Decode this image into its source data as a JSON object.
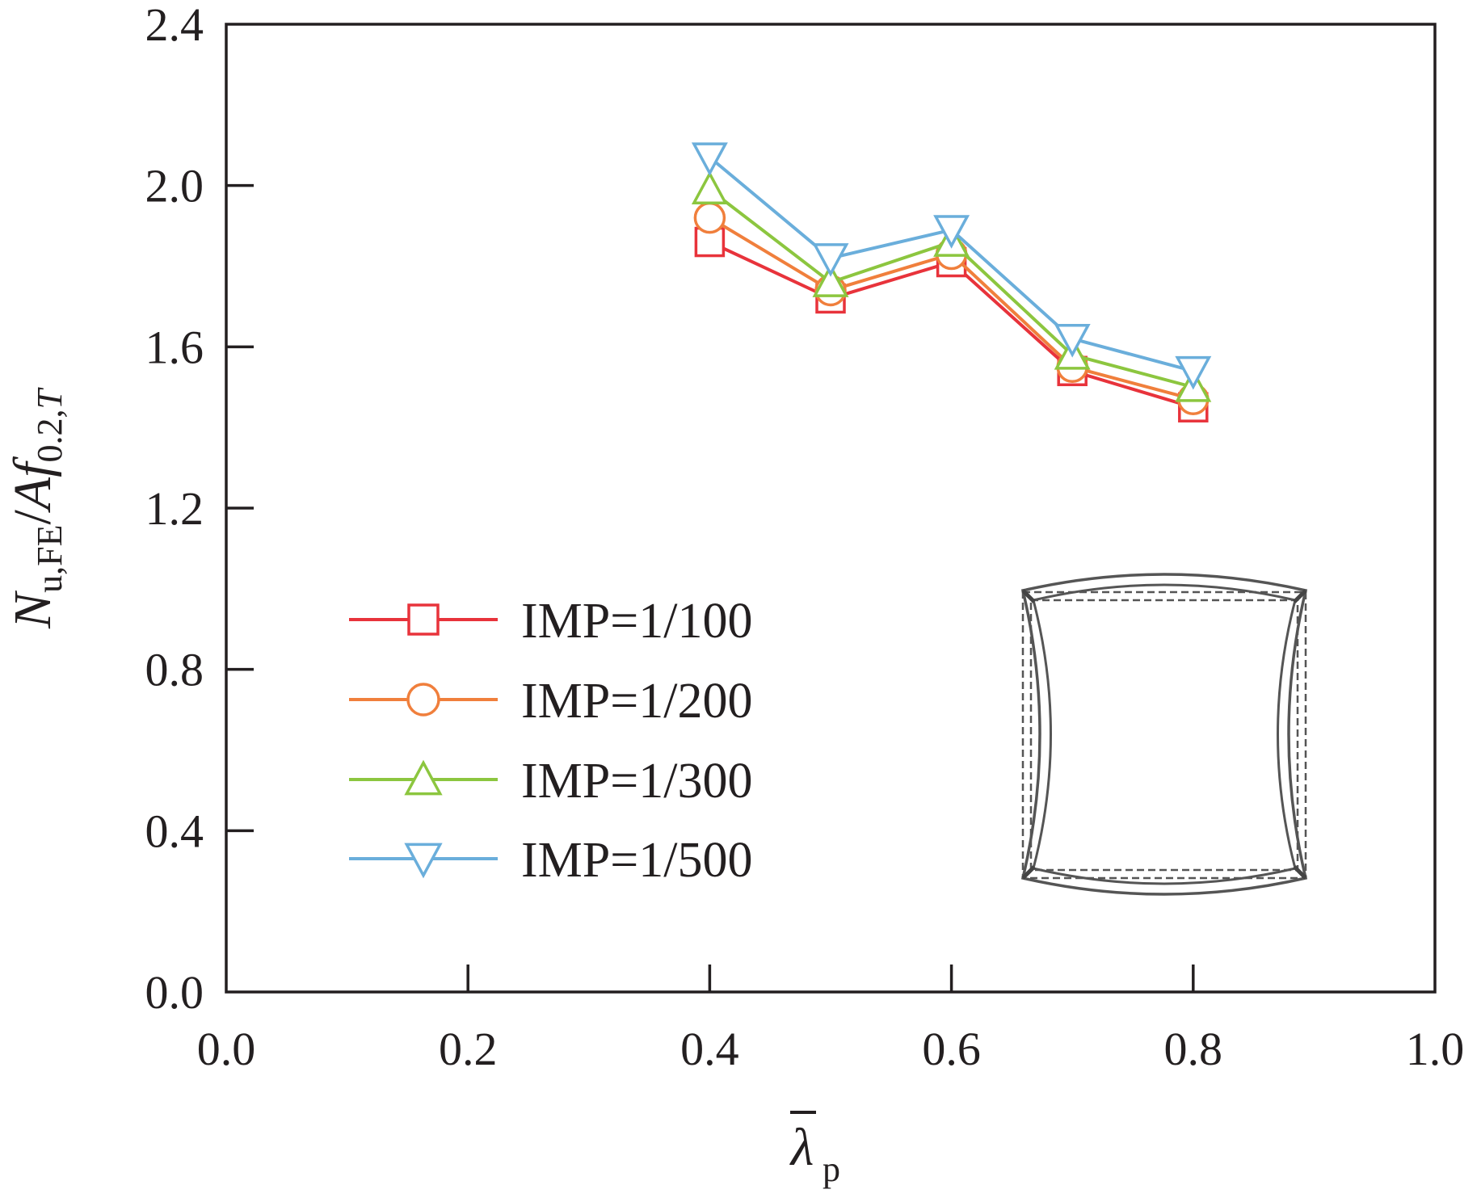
{
  "chart_data": {
    "type": "line",
    "title": "",
    "xlabel": {
      "base": "λ",
      "sub": "p",
      "overbar": true
    },
    "ylabel": {
      "n": "N",
      "n_sub": "u,FE",
      "sep": "/",
      "a": "A",
      "f": "f",
      "f_sub": "0.2,",
      "f_sub_t": "T"
    },
    "xlim": [
      0.0,
      1.0
    ],
    "ylim": [
      0.0,
      2.4
    ],
    "x_ticks": [
      0.0,
      0.2,
      0.4,
      0.6,
      0.8,
      1.0
    ],
    "y_ticks": [
      0.0,
      0.4,
      0.8,
      1.2,
      1.6,
      2.0,
      2.4
    ],
    "x_tick_labels": [
      "0.0",
      "0.2",
      "0.4",
      "0.6",
      "0.8",
      "1.0"
    ],
    "y_tick_labels": [
      "0.0",
      "0.4",
      "0.8",
      "1.2",
      "1.6",
      "2.0",
      "2.4"
    ],
    "grid": false,
    "legend_position": "lower-left",
    "x": [
      0.4,
      0.5,
      0.6,
      0.7,
      0.8
    ],
    "series": [
      {
        "name": "IMP=1/100",
        "marker": "square",
        "color": "#e8333b",
        "values": [
          1.86,
          1.72,
          1.81,
          1.54,
          1.45
        ]
      },
      {
        "name": "IMP=1/200",
        "marker": "circle",
        "color": "#f07f3c",
        "values": [
          1.92,
          1.74,
          1.83,
          1.55,
          1.47
        ]
      },
      {
        "name": "IMP=1/300",
        "marker": "triangle-up",
        "color": "#8cc63f",
        "values": [
          1.99,
          1.76,
          1.86,
          1.58,
          1.5
        ]
      },
      {
        "name": "IMP=1/500",
        "marker": "triangle-down",
        "color": "#6aaedb",
        "values": [
          2.07,
          1.82,
          1.89,
          1.62,
          1.54
        ]
      }
    ]
  },
  "inset": {
    "name": "deformed-section-diagram",
    "stroke": "#555555"
  }
}
